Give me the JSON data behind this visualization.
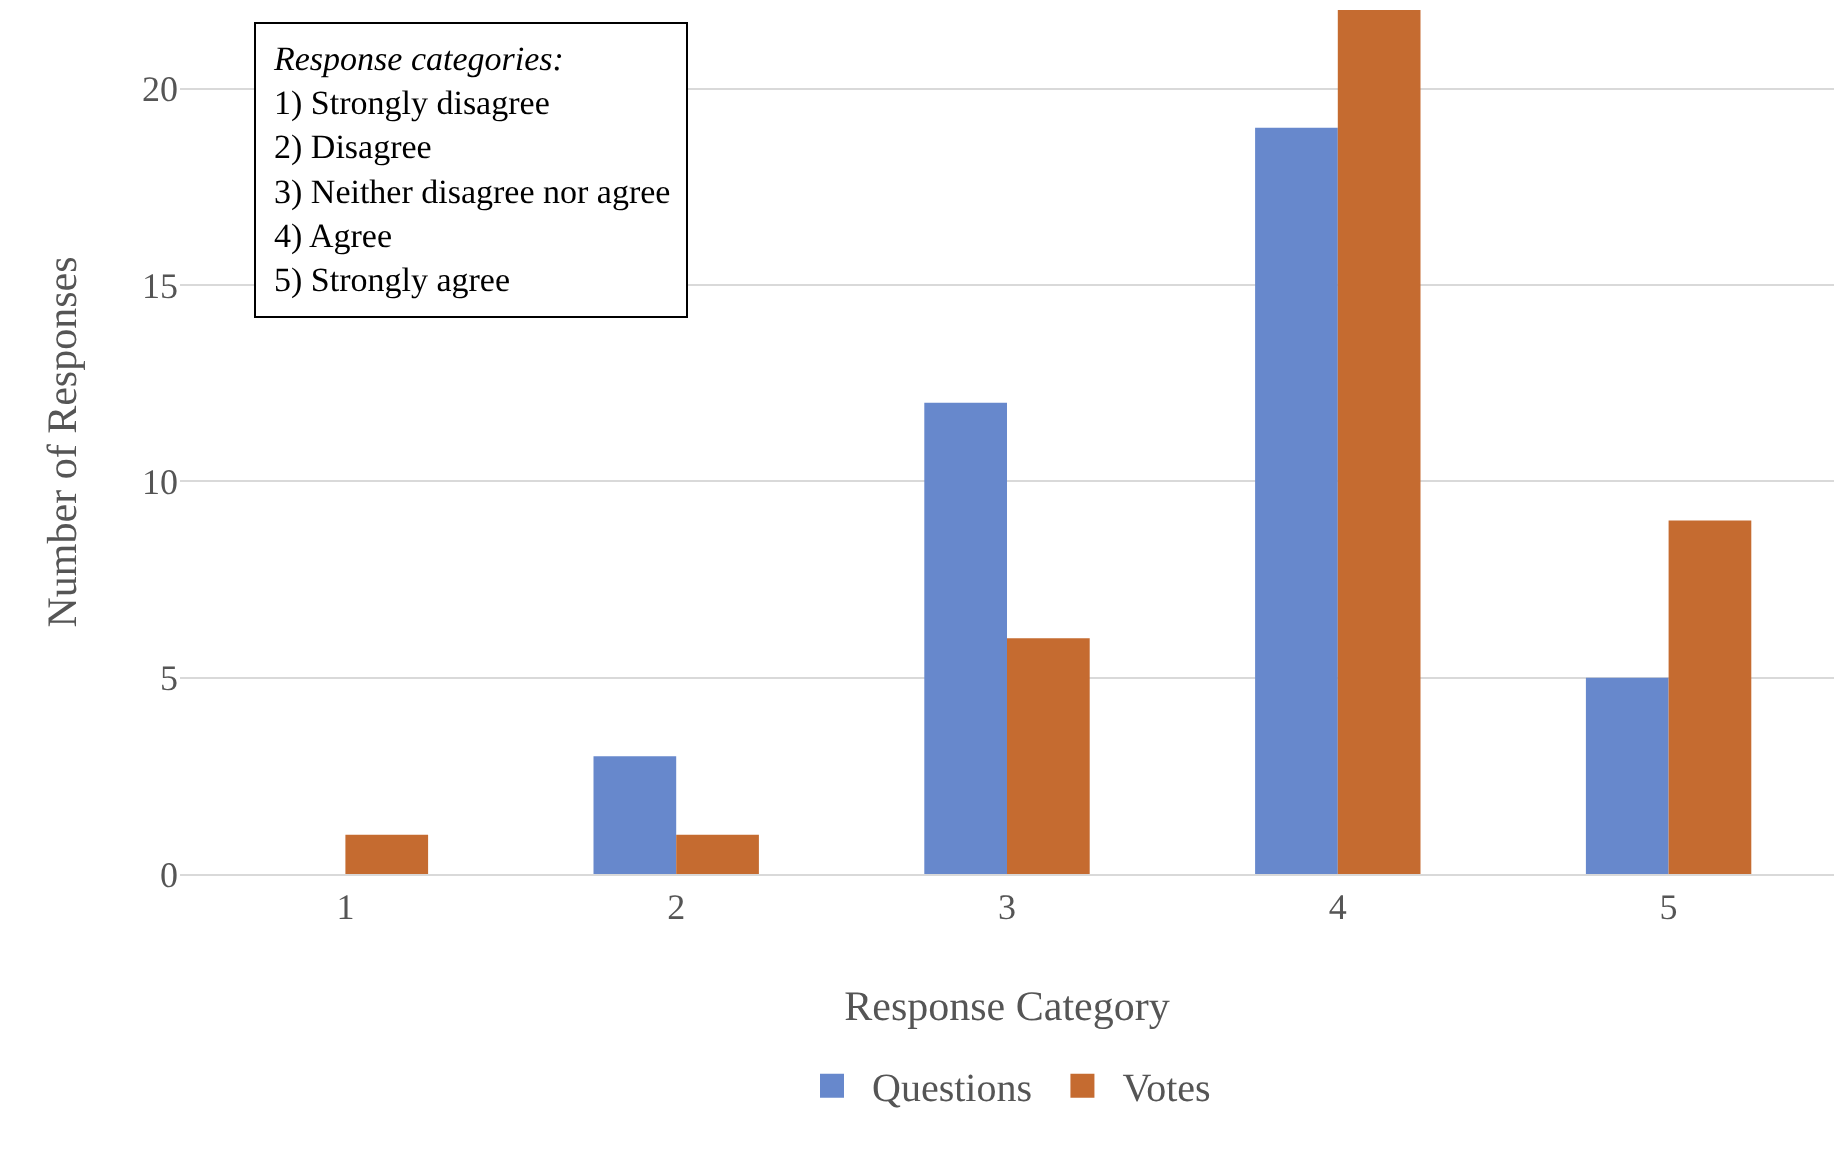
{
  "chart_data": {
    "type": "bar",
    "xlabel": "Response Category",
    "ylabel": "Number of Responses",
    "categories": [
      "1",
      "2",
      "3",
      "4",
      "5"
    ],
    "series": [
      {
        "name": "Questions",
        "color": "#6788cc",
        "values": [
          0,
          3,
          12,
          19,
          5
        ]
      },
      {
        "name": "Votes",
        "color": "#c56b30",
        "values": [
          1,
          1,
          6,
          22,
          9
        ]
      }
    ],
    "ylim": [
      0,
      22
    ],
    "yticks": [
      0,
      5,
      10,
      15,
      20
    ],
    "grid": "y",
    "legend": "bottom",
    "annotations": [
      "Response categories:",
      "1) Strongly disagree",
      "2) Disagree",
      "3) Neither disagree nor agree",
      "4) Agree",
      "5) Strongly agree"
    ]
  }
}
